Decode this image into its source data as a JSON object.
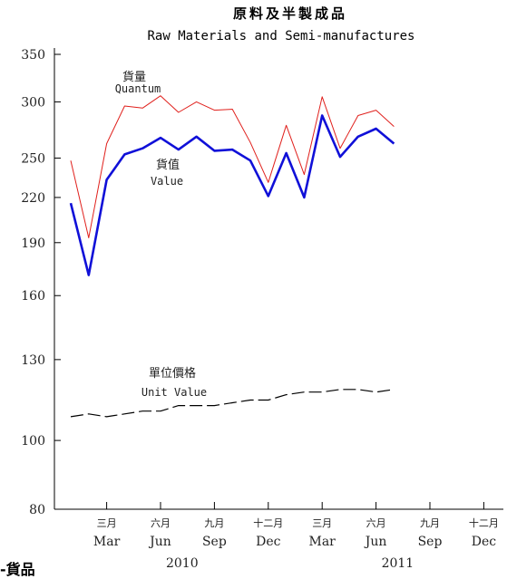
{
  "chart_data": {
    "type": "line",
    "title": "原料及半製成品",
    "subtitle": "Raw Materials and Semi-manufactures",
    "y_axis": {
      "scale": "log",
      "ylim": [
        80,
        350
      ],
      "ticks": [
        80,
        100,
        130,
        160,
        190,
        220,
        250,
        300,
        350
      ]
    },
    "x_axis": {
      "ticks": [
        {
          "zh": "三月",
          "en": "Mar",
          "index": 2
        },
        {
          "zh": "六月",
          "en": "Jun",
          "index": 5
        },
        {
          "zh": "九月",
          "en": "Sep",
          "index": 8
        },
        {
          "zh": "十二月",
          "en": "Dec",
          "index": 11
        },
        {
          "zh": "三月",
          "en": "Mar",
          "index": 14
        },
        {
          "zh": "六月",
          "en": "Jun",
          "index": 17
        },
        {
          "zh": "九月",
          "en": "Sep",
          "index": 20
        },
        {
          "zh": "十二月",
          "en": "Dec",
          "index": 23
        }
      ],
      "years": [
        {
          "label": "2010",
          "center_index": 6
        },
        {
          "label": "2011",
          "center_index": 18
        }
      ],
      "n_periods": 24
    },
    "series": [
      {
        "name_zh": "貨量",
        "name_en": "Quantum",
        "color": "#e0201c",
        "style": "thin",
        "values": [
          248,
          193,
          262,
          296,
          294,
          306,
          290,
          300,
          292,
          293,
          263,
          231,
          278,
          237,
          305,
          258,
          287,
          292,
          277
        ]
      },
      {
        "name_zh": "貨值",
        "name_en": "Value",
        "color": "#1010d8",
        "style": "bold",
        "values": [
          216,
          171,
          233,
          253,
          258,
          267,
          257,
          268,
          256,
          257,
          248,
          221,
          254,
          220,
          287,
          251,
          268,
          275,
          262
        ]
      },
      {
        "name_zh": "單位價格",
        "name_en": "Unit Value",
        "color": "#000000",
        "style": "dashed",
        "values": [
          108,
          109,
          108,
          109,
          110,
          110,
          112,
          112,
          112,
          113,
          114,
          114,
          116,
          117,
          117,
          118,
          118,
          117,
          118
        ]
      }
    ]
  },
  "footer": {
    "cutoff_text": "-貨品"
  }
}
